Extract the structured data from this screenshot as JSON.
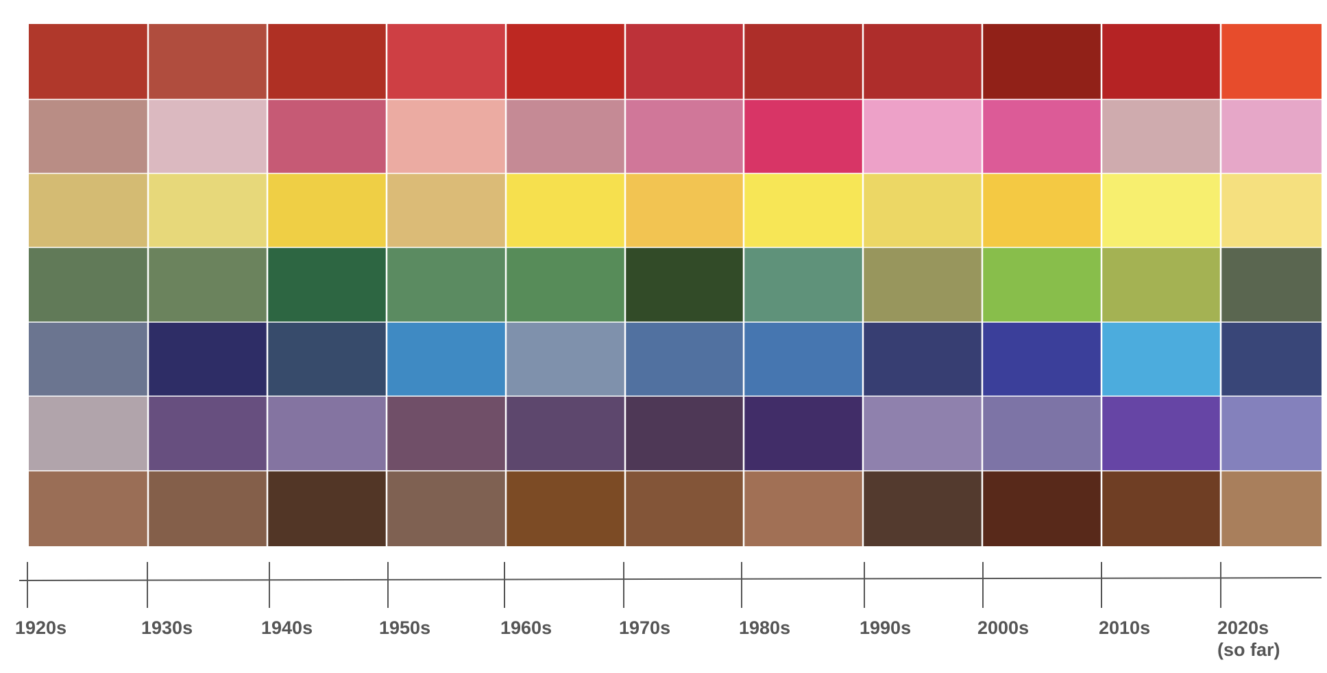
{
  "chart_data": {
    "type": "heatmap",
    "title": "",
    "xlabel": "",
    "ylabel": "",
    "columns": [
      {
        "label": "1920s",
        "sublabel": "",
        "colors": [
          "#b0382b",
          "#b98d85",
          "#d4bb73",
          "#617a58",
          "#6b7590",
          "#b1a4ab",
          "#9a6e56"
        ]
      },
      {
        "label": "1930s",
        "sublabel": "",
        "colors": [
          "#b04d3e",
          "#dbb9c0",
          "#e7d87a",
          "#6b835d",
          "#2e2d66",
          "#674f7f",
          "#845f4a"
        ]
      },
      {
        "label": "1940s",
        "sublabel": "",
        "colors": [
          "#af3024",
          "#c65a75",
          "#efcf45",
          "#2d6642",
          "#374b6b",
          "#8474a1",
          "#523626"
        ]
      },
      {
        "label": "1950s",
        "sublabel": "",
        "colors": [
          "#ce3f44",
          "#ebaba2",
          "#dbbb77",
          "#5b8b61",
          "#3f8ac3",
          "#704f68",
          "#7f6152"
        ]
      },
      {
        "label": "1960s",
        "sublabel": "",
        "colors": [
          "#bd2822",
          "#c58a95",
          "#f6e04e",
          "#578c59",
          "#7f91ac",
          "#5d476d",
          "#7c4b25"
        ]
      },
      {
        "label": "1970s",
        "sublabel": "",
        "colors": [
          "#bd3239",
          "#d07799",
          "#f2c452",
          "#324b28",
          "#5171a0",
          "#4e3856",
          "#835538"
        ]
      },
      {
        "label": "1980s",
        "sublabel": "",
        "colors": [
          "#ad2e29",
          "#d83566",
          "#f7e656",
          "#5f927a",
          "#4676b0",
          "#412d68",
          "#a17055"
        ]
      },
      {
        "label": "1990s",
        "sublabel": "",
        "colors": [
          "#ae2d2b",
          "#eda1c8",
          "#ecd765",
          "#98965d",
          "#373e72",
          "#8f81ad",
          "#533a2e"
        ]
      },
      {
        "label": "2000s",
        "sublabel": "",
        "colors": [
          "#912118",
          "#dc5b97",
          "#f4c943",
          "#88be4b",
          "#3b3f9a",
          "#7d74a6",
          "#58291a"
        ]
      },
      {
        "label": "2010s",
        "sublabel": "",
        "colors": [
          "#b52324",
          "#cfabae",
          "#f7ef6f",
          "#a4b253",
          "#4cacdd",
          "#6645a5",
          "#6f3e24"
        ]
      },
      {
        "label": "2020s",
        "sublabel": "(so far)",
        "colors": [
          "#e74c2c",
          "#e6a7c8",
          "#f5e07f",
          "#5a6650",
          "#394678",
          "#8481bc",
          "#a97f5c"
        ]
      }
    ]
  }
}
